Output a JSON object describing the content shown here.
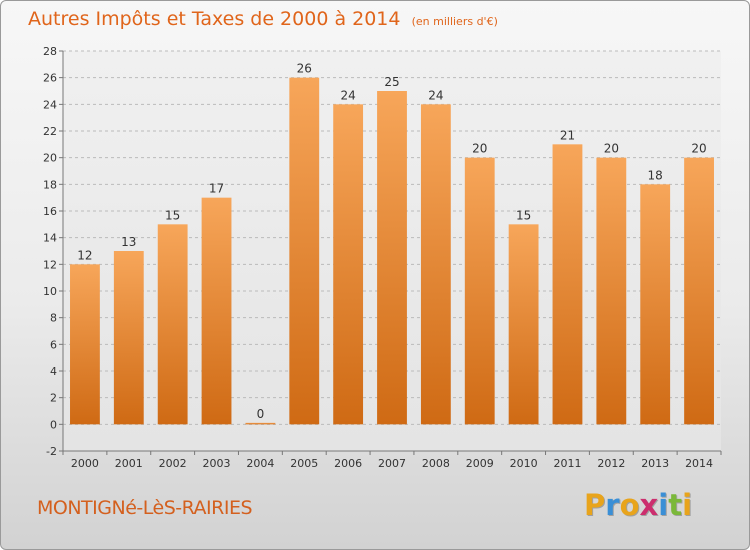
{
  "header": {
    "title": "Autres Impôts et Taxes de 2000 à 2014",
    "unit": "(en milliers d'€)"
  },
  "footer": {
    "commune": "MONTIGNé-LèS-RAIRIES",
    "logo_letters": [
      "P",
      "r",
      "o",
      "x",
      "i",
      "t",
      "i"
    ],
    "logo_colors": [
      "#e8a41c",
      "#3a8fd6",
      "#e8a41c",
      "#cc2e6e",
      "#3a8fd6",
      "#7bb83a",
      "#e8a41c"
    ]
  },
  "colors": {
    "bar_top": "#f7a65a",
    "bar_bottom": "#cf6a14",
    "axis_text": "#333333",
    "grid": "#bbbbbb"
  },
  "chart_data": {
    "type": "bar",
    "categories": [
      "2000",
      "2001",
      "2002",
      "2003",
      "2004",
      "2005",
      "2006",
      "2007",
      "2008",
      "2009",
      "2010",
      "2011",
      "2012",
      "2013",
      "2014"
    ],
    "values": [
      12,
      13,
      15,
      17,
      0,
      26,
      24,
      25,
      24,
      20,
      15,
      21,
      20,
      18,
      20
    ],
    "ylim": [
      -2,
      28
    ],
    "yticks": [
      -2,
      0,
      2,
      4,
      6,
      8,
      10,
      12,
      14,
      16,
      18,
      20,
      22,
      24,
      26,
      28
    ],
    "grid": true,
    "data_labels": true
  }
}
